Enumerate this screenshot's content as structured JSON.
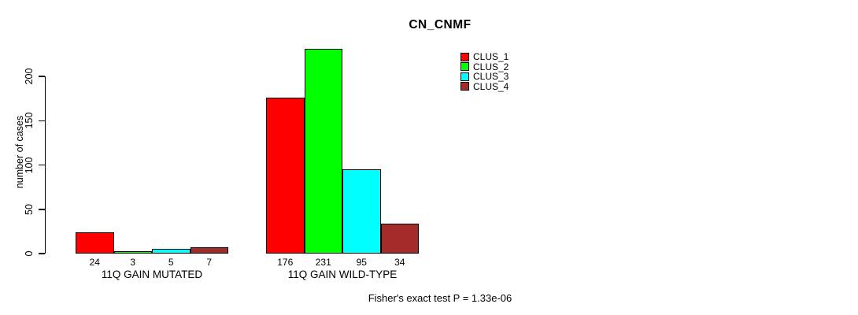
{
  "chart_data": {
    "type": "bar",
    "title": "CN_CNMF",
    "xlabel": "",
    "ylabel": "number of cases",
    "yticks": [
      0,
      50,
      100,
      150,
      200
    ],
    "ylim": [
      0,
      231
    ],
    "grid": false,
    "legend_position": "top-right",
    "bar_value_labels_shown": true,
    "categories": [
      "11Q GAIN MUTATED",
      "11Q GAIN WILD-TYPE"
    ],
    "series": [
      {
        "name": "CLUS_1",
        "color": "#ff0000",
        "values": [
          24,
          176
        ]
      },
      {
        "name": "CLUS_2",
        "color": "#00ff00",
        "values": [
          3,
          231
        ]
      },
      {
        "name": "CLUS_3",
        "color": "#00ffff",
        "values": [
          5,
          95
        ]
      },
      {
        "name": "CLUS_4",
        "color": "#a52a2a",
        "values": [
          7,
          34
        ]
      }
    ],
    "annotation": "Fisher's exact test P = 1.33e-06"
  },
  "colors": {
    "axis": "#000000",
    "background": "#ffffff",
    "bar_border": "#000000"
  }
}
